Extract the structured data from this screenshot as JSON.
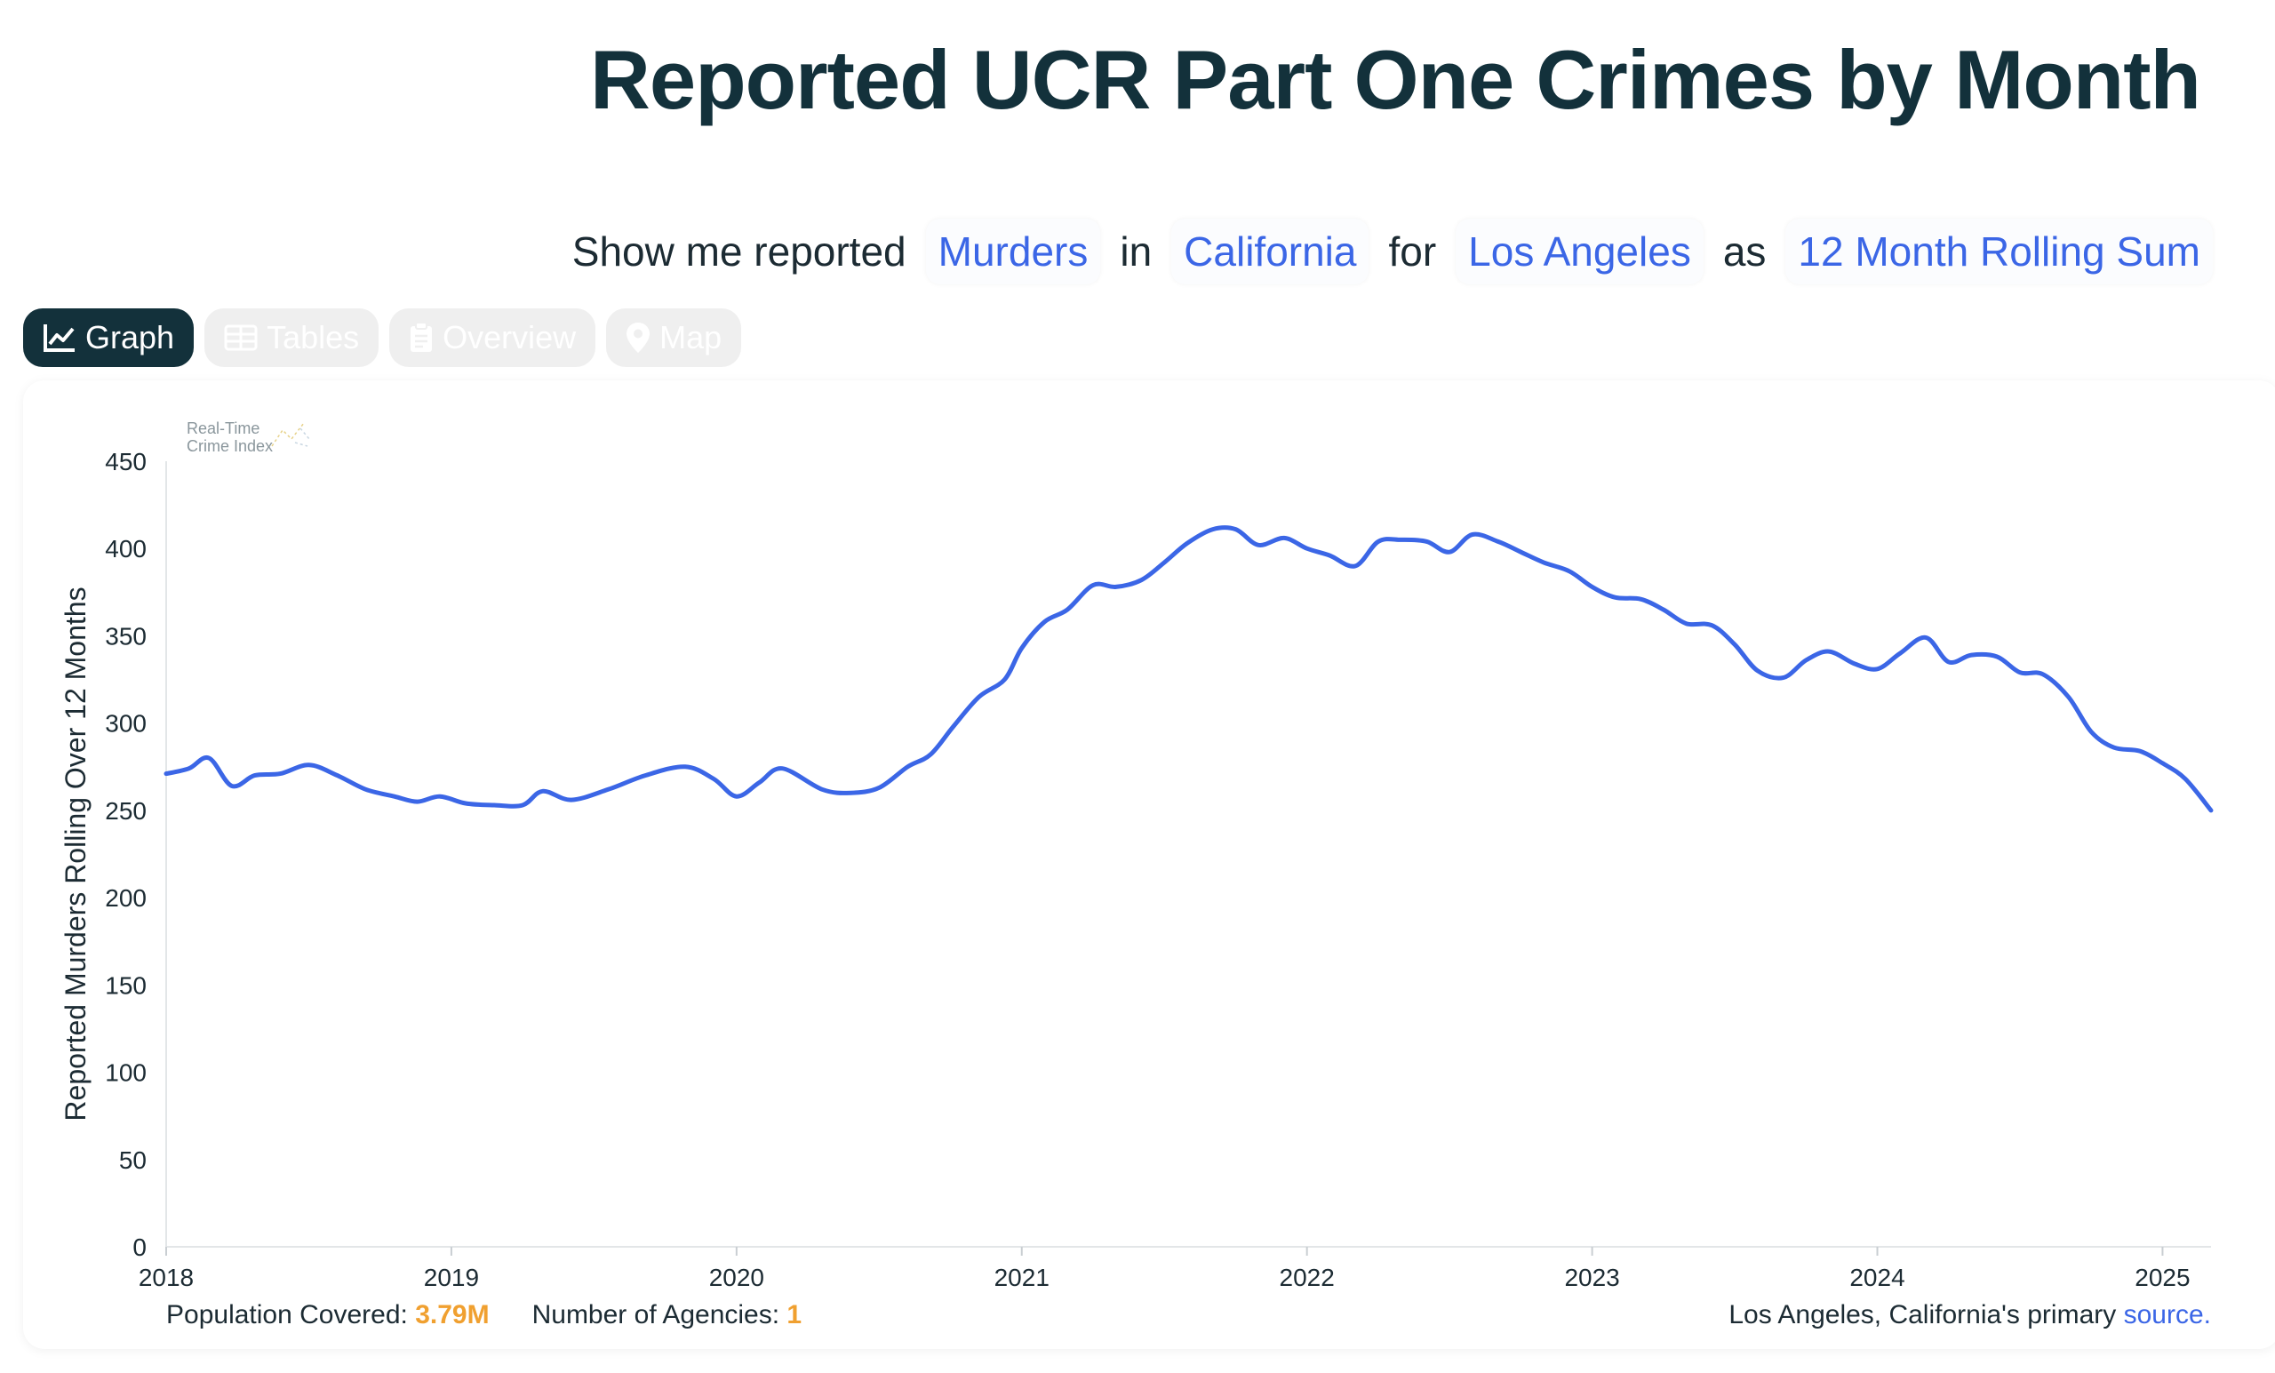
{
  "header": {
    "title": "Reported UCR Part One Crimes by Month"
  },
  "query": {
    "prefix": "Show me reported",
    "crime": "Murders",
    "in_word": "in",
    "state": "California",
    "for_word": "for",
    "agency": "Los Angeles",
    "as_word": "as",
    "measure": "12 Month Rolling Sum"
  },
  "tabs": [
    {
      "label": "Graph",
      "icon": "line-chart-icon",
      "active": true
    },
    {
      "label": "Tables",
      "icon": "table-icon",
      "active": false
    },
    {
      "label": "Overview",
      "icon": "clipboard-icon",
      "active": false
    },
    {
      "label": "Map",
      "icon": "map-pin-icon",
      "active": false
    }
  ],
  "watermark": {
    "line1": "Real-Time",
    "line2": "Crime Index"
  },
  "footer": {
    "population_label": "Population Covered:",
    "population_value": "3.79M",
    "agencies_label": "Number of Agencies:",
    "agencies_value": "1",
    "source_prefix": "Los Angeles, California's primary",
    "source_link": "source."
  },
  "colors": {
    "line": "#3b66e6",
    "title": "#13313b",
    "accent": "#f0a030",
    "link": "#3b66e6"
  },
  "chart_data": {
    "type": "line",
    "ylabel": "Reported Murders Rolling Over 12 Months",
    "xlabel": "",
    "ylim": [
      0,
      450
    ],
    "yticks": [
      0,
      50,
      100,
      150,
      200,
      250,
      300,
      350,
      400,
      450
    ],
    "xlim": [
      2018.0,
      2025.17
    ],
    "xticks": [
      "2018",
      "2019",
      "2020",
      "2021",
      "2022",
      "2023",
      "2024",
      "2025"
    ],
    "grid": false,
    "series": [
      {
        "x": [
          2018.0,
          2018.08,
          2018.15,
          2018.23,
          2018.31,
          2018.4,
          2018.5,
          2018.6,
          2018.7,
          2018.8,
          2018.88,
          2018.96,
          2019.05,
          2019.15,
          2019.25,
          2019.32,
          2019.42,
          2019.55,
          2019.68,
          2019.82,
          2019.92,
          2020.0,
          2020.08,
          2020.16,
          2020.3,
          2020.4,
          2020.5,
          2020.6,
          2020.68,
          2020.76,
          2020.85,
          2020.94,
          2021.0,
          2021.08,
          2021.16,
          2021.25,
          2021.33,
          2021.42,
          2021.5,
          2021.58,
          2021.67,
          2021.75,
          2021.83,
          2021.92,
          2022.0,
          2022.08,
          2022.17,
          2022.25,
          2022.33,
          2022.42,
          2022.5,
          2022.58,
          2022.67,
          2022.75,
          2022.83,
          2022.92,
          2023.0,
          2023.08,
          2023.17,
          2023.25,
          2023.33,
          2023.42,
          2023.5,
          2023.58,
          2023.67,
          2023.75,
          2023.83,
          2023.92,
          2024.0,
          2024.08,
          2024.17,
          2024.25,
          2024.33,
          2024.42,
          2024.5,
          2024.58,
          2024.67,
          2024.75,
          2024.83,
          2024.92,
          2025.0,
          2025.08,
          2025.17
        ],
        "y": [
          271,
          274,
          280,
          264,
          270,
          271,
          276,
          270,
          262,
          258,
          255,
          258,
          254,
          253,
          253,
          261,
          256,
          262,
          270,
          275,
          268,
          258,
          266,
          274,
          262,
          260,
          263,
          275,
          282,
          298,
          315,
          325,
          343,
          358,
          365,
          379,
          378,
          382,
          392,
          403,
          411,
          411,
          402,
          406,
          400,
          396,
          390,
          404,
          405,
          404,
          398,
          408,
          404,
          398,
          392,
          387,
          378,
          372,
          371,
          365,
          357,
          356,
          345,
          330,
          326,
          336,
          341,
          334,
          331,
          340,
          349,
          335,
          339,
          338,
          329,
          328,
          315,
          295,
          286,
          284,
          277,
          268,
          250
        ]
      }
    ]
  }
}
